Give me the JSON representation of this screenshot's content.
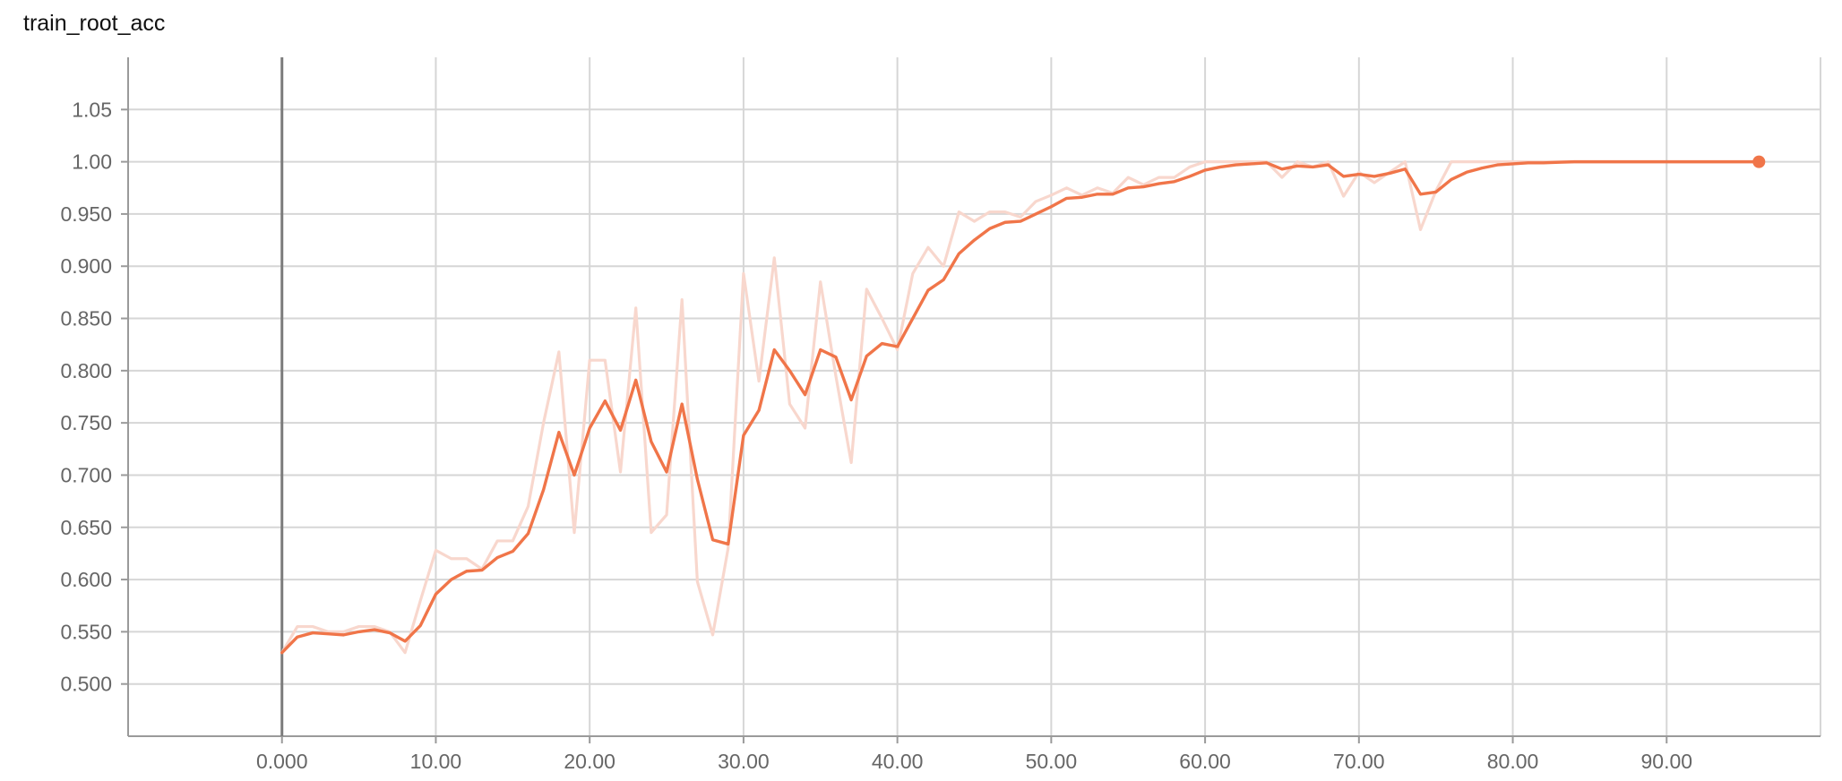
{
  "title": "train_root_acc",
  "chart_data": {
    "type": "line",
    "title": "train_root_acc",
    "xlabel": "",
    "ylabel": "",
    "xlim": [
      -10,
      100
    ],
    "ylim": [
      0.45,
      1.1
    ],
    "grid": true,
    "x_tick_values": [
      0,
      10,
      20,
      30,
      40,
      50,
      60,
      70,
      80,
      90
    ],
    "x_tick_labels": [
      "0.000",
      "10.00",
      "20.00",
      "30.00",
      "40.00",
      "50.00",
      "60.00",
      "70.00",
      "80.00",
      "90.00"
    ],
    "y_tick_values": [
      0.5,
      0.55,
      0.6,
      0.65,
      0.7,
      0.75,
      0.8,
      0.85,
      0.9,
      0.95,
      1.0,
      1.05
    ],
    "y_tick_labels": [
      "0.500",
      "0.550",
      "0.600",
      "0.650",
      "0.700",
      "0.750",
      "0.800",
      "0.850",
      "0.900",
      "0.950",
      "1.00",
      "1.05"
    ],
    "colors": {
      "smoothed": "#f07549",
      "raw": "#f8d7cd"
    },
    "series": [
      {
        "role": "raw",
        "x": [
          0,
          1,
          2,
          3,
          4,
          5,
          6,
          7,
          8,
          9,
          10,
          11,
          12,
          13,
          14,
          15,
          16,
          17,
          18,
          19,
          20,
          21,
          22,
          23,
          24,
          25,
          26,
          27,
          28,
          29,
          30,
          31,
          32,
          33,
          34,
          35,
          36,
          37,
          38,
          39,
          40,
          41,
          42,
          43,
          44,
          45,
          46,
          47,
          48,
          49,
          50,
          51,
          52,
          53,
          54,
          55,
          56,
          57,
          58,
          59,
          60,
          61,
          62,
          63,
          64,
          65,
          66,
          67,
          68,
          69,
          70,
          71,
          72,
          73,
          74,
          75,
          76,
          77,
          78,
          79,
          80,
          81,
          82,
          83,
          84,
          85,
          86,
          87,
          88,
          89,
          90,
          91,
          92,
          93,
          94,
          95,
          96
        ],
        "y": [
          0.53,
          0.555,
          0.555,
          0.55,
          0.55,
          0.555,
          0.555,
          0.55,
          0.53,
          0.58,
          0.628,
          0.62,
          0.62,
          0.61,
          0.637,
          0.637,
          0.67,
          0.75,
          0.818,
          0.645,
          0.81,
          0.81,
          0.703,
          0.86,
          0.645,
          0.662,
          0.868,
          0.598,
          0.547,
          0.63,
          0.893,
          0.79,
          0.908,
          0.768,
          0.745,
          0.885,
          0.795,
          0.712,
          0.878,
          0.85,
          0.82,
          0.893,
          0.918,
          0.9,
          0.952,
          0.943,
          0.952,
          0.952,
          0.947,
          0.962,
          0.968,
          0.975,
          0.968,
          0.975,
          0.97,
          0.985,
          0.978,
          0.985,
          0.985,
          0.995,
          1.0,
          1.0,
          1.0,
          1.0,
          1.0,
          0.985,
          1.0,
          0.995,
          1.0,
          0.967,
          0.99,
          0.98,
          0.99,
          1.0,
          0.935,
          0.972,
          1.0,
          1.0,
          1.0,
          1.0,
          1.0,
          1.0,
          1.0,
          1.0,
          1.0,
          1.0,
          1.0,
          1.0,
          1.0,
          1.0,
          1.0,
          1.0,
          1.0,
          1.0,
          1.0,
          1.0,
          1.0
        ]
      },
      {
        "role": "smoothed",
        "x": [
          0,
          1,
          2,
          3,
          4,
          5,
          6,
          7,
          8,
          9,
          10,
          11,
          12,
          13,
          14,
          15,
          16,
          17,
          18,
          19,
          20,
          21,
          22,
          23,
          24,
          25,
          26,
          27,
          28,
          29,
          30,
          31,
          32,
          33,
          34,
          35,
          36,
          37,
          38,
          39,
          40,
          41,
          42,
          43,
          44,
          45,
          46,
          47,
          48,
          49,
          50,
          51,
          52,
          53,
          54,
          55,
          56,
          57,
          58,
          59,
          60,
          61,
          62,
          63,
          64,
          65,
          66,
          67,
          68,
          69,
          70,
          71,
          72,
          73,
          74,
          75,
          76,
          77,
          78,
          79,
          80,
          81,
          82,
          83,
          84,
          85,
          86,
          87,
          88,
          89,
          90,
          91,
          92,
          93,
          94,
          95,
          96
        ],
        "y": [
          0.53,
          0.545,
          0.549,
          0.548,
          0.547,
          0.55,
          0.552,
          0.549,
          0.541,
          0.556,
          0.586,
          0.6,
          0.608,
          0.609,
          0.621,
          0.627,
          0.644,
          0.686,
          0.741,
          0.7,
          0.745,
          0.771,
          0.743,
          0.791,
          0.732,
          0.703,
          0.768,
          0.696,
          0.638,
          0.634,
          0.738,
          0.762,
          0.82,
          0.8,
          0.777,
          0.82,
          0.813,
          0.772,
          0.814,
          0.826,
          0.823,
          0.85,
          0.877,
          0.887,
          0.912,
          0.925,
          0.936,
          0.942,
          0.943,
          0.95,
          0.957,
          0.965,
          0.966,
          0.969,
          0.969,
          0.975,
          0.976,
          0.979,
          0.981,
          0.986,
          0.992,
          0.995,
          0.997,
          0.998,
          0.999,
          0.993,
          0.996,
          0.995,
          0.997,
          0.986,
          0.988,
          0.986,
          0.989,
          0.993,
          0.969,
          0.971,
          0.983,
          0.99,
          0.994,
          0.997,
          0.998,
          0.999,
          0.999,
          0.9995,
          1.0,
          1.0,
          1.0,
          1.0,
          1.0,
          1.0,
          1.0,
          1.0,
          1.0,
          1.0,
          1.0,
          1.0,
          1.0
        ]
      }
    ]
  }
}
